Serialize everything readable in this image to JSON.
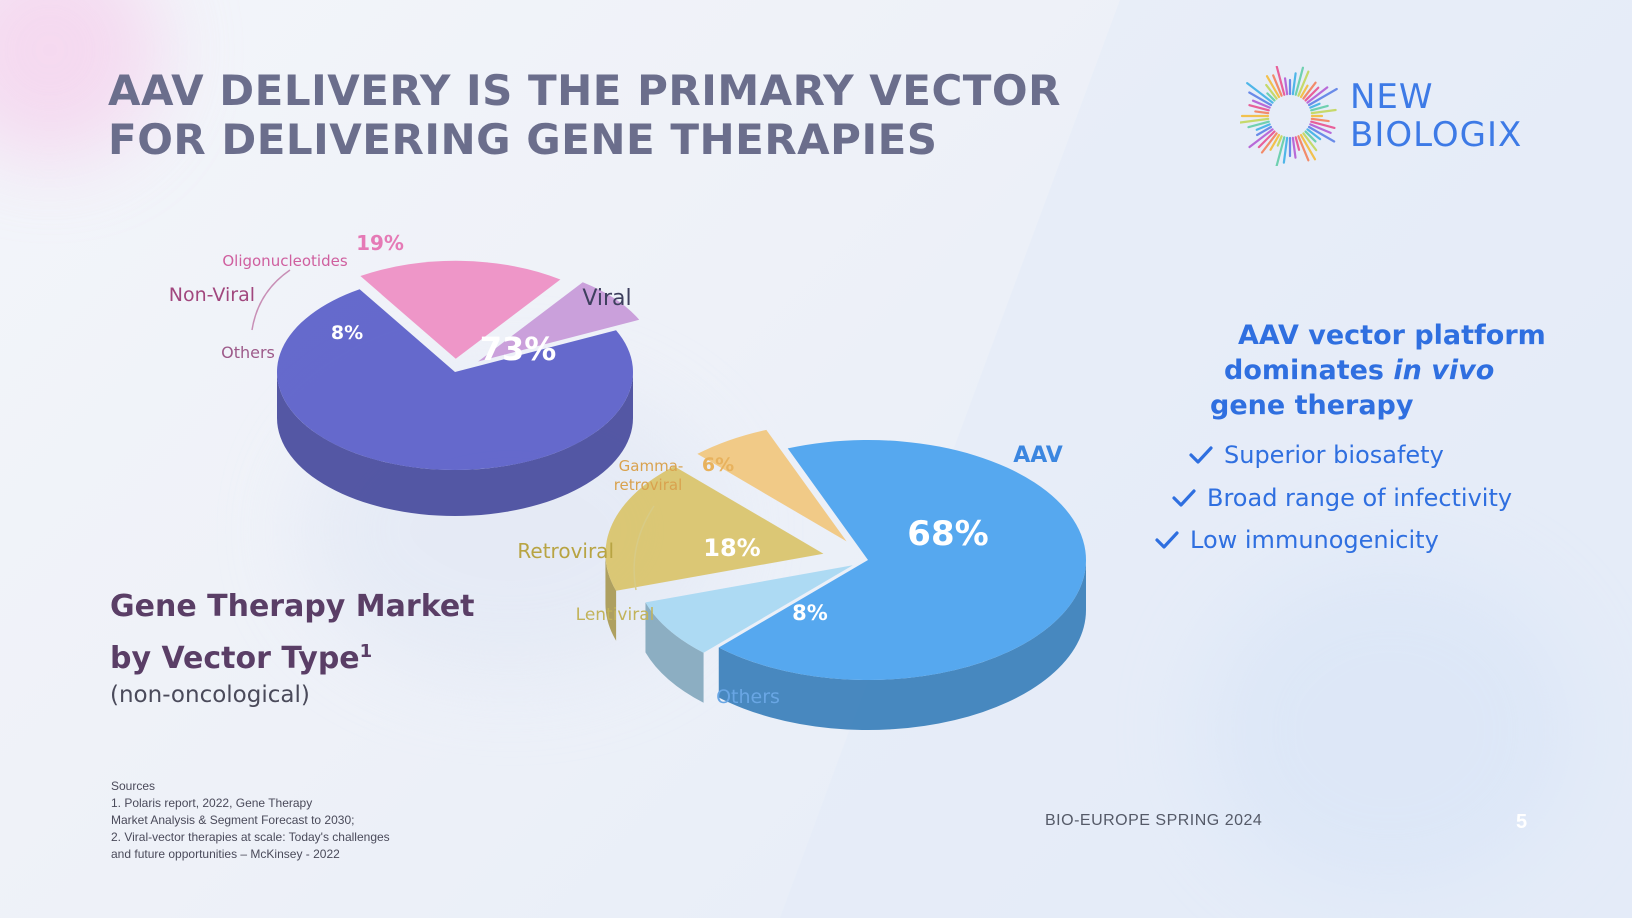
{
  "slide": {
    "title_lines": [
      "AAV DELIVERY IS THE PRIMARY VECTOR",
      "FOR DELIVERING GENE THERAPIES"
    ],
    "logo_lines": [
      "NEW",
      "BIOLOGIX"
    ],
    "claim": {
      "line1": "AAV vector platform",
      "line2_pre": "dominates ",
      "line2_em": "in vivo",
      "line3": "gene therapy"
    },
    "bullets": [
      "Superior biosafety",
      "Broad range of infectivity",
      "Low immunogenicity"
    ],
    "market_title_lines": [
      "Gene Therapy Market",
      "by Vector Type"
    ],
    "market_title_sup": "1",
    "market_subtitle": "(non-oncological)",
    "sources": [
      "Sources",
      "1. Polaris report, 2022, Gene Therapy",
      "Market Analysis & Segment Forecast to 2030;",
      "2. Viral-vector therapies at scale: Today's challenges",
      "and future opportunities – McKinsey - 2022"
    ],
    "footer_event": "BIO-EUROPE SPRING 2024",
    "page_number": "5",
    "colors": {
      "title": "#6b6e8c",
      "accent_blue": "#2f6fe0",
      "viral": "#5a5fc8",
      "oligo": "#ee8fc4",
      "others_pink": "#c79ad8",
      "aav": "#4aa3ee",
      "retro": "#d9c46a",
      "gamma": "#f1c77e",
      "others_blue": "#a8d8f2"
    }
  },
  "chart_data": [
    {
      "type": "pie",
      "title": "",
      "group_labels": {
        "non_viral": "Non-Viral",
        "viral": "Viral"
      },
      "slices": [
        {
          "label": "Viral",
          "value": 73,
          "display": "73%",
          "color": "#5a5fc8"
        },
        {
          "label": "Oligonucleotides",
          "value": 19,
          "display": "19%",
          "color": "#ee8fc4",
          "group": "Non-Viral"
        },
        {
          "label": "Others",
          "value": 8,
          "display": "8%",
          "color": "#c79ad8",
          "group": "Non-Viral"
        }
      ]
    },
    {
      "type": "pie",
      "title": "",
      "group_labels": {
        "retroviral": "Retroviral",
        "aav": "AAV"
      },
      "slices": [
        {
          "label": "AAV",
          "value": 68,
          "display": "68%",
          "color": "#4aa3ee"
        },
        {
          "label": "Others",
          "value": 8,
          "display": "8%",
          "color": "#a8d8f2"
        },
        {
          "label": "Lentiviral",
          "value": 18,
          "display": "18%",
          "color": "#d9c46a",
          "group": "Retroviral"
        },
        {
          "label": "Gamma-retroviral",
          "label_lines": [
            "Gamma-",
            "retroviral"
          ],
          "value": 6,
          "display": "6%",
          "color": "#f1c77e",
          "group": "Retroviral"
        }
      ]
    }
  ]
}
